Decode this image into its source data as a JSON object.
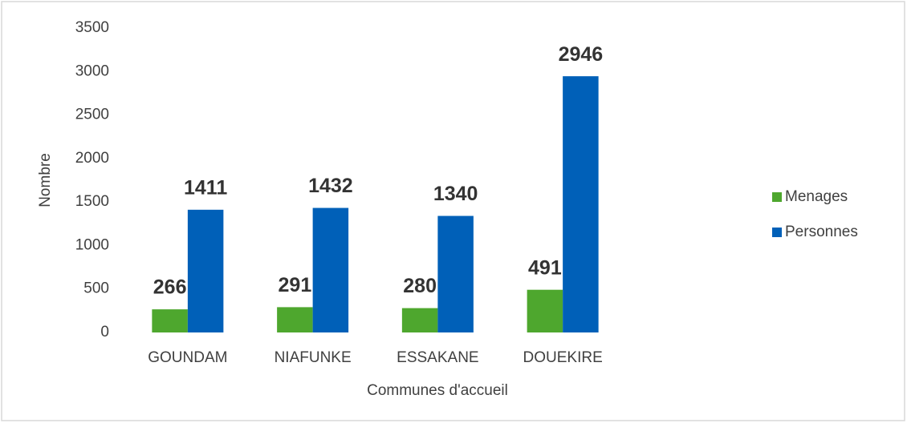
{
  "chart_data": {
    "type": "bar",
    "categories": [
      "GOUNDAM",
      "NIAFUNKE",
      "ESSAKANE",
      "DOUEKIRE"
    ],
    "series": [
      {
        "name": "Menages",
        "color": "#4ea72e",
        "values": [
          266,
          291,
          280,
          491
        ]
      },
      {
        "name": "Personnes",
        "color": "#0060b8",
        "values": [
          1411,
          1432,
          1340,
          2946
        ]
      }
    ],
    "ylim": [
      0,
      3500
    ],
    "yticks": [
      0,
      500,
      1000,
      1500,
      2000,
      2500,
      3000,
      3500
    ],
    "ylabel": "Nombre",
    "xlabel": "Communes d'accueil",
    "grid": false,
    "legend": "right"
  }
}
